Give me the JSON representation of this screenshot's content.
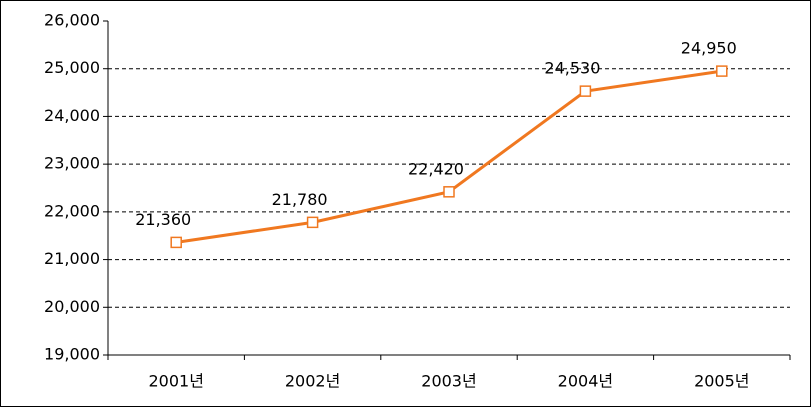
{
  "chart_data": {
    "type": "line",
    "categories": [
      "2001년",
      "2002년",
      "2003년",
      "2004년",
      "2005년"
    ],
    "series": [
      {
        "color": "#f07820",
        "values": [
          21360,
          21780,
          22420,
          24530,
          24950
        ],
        "value_labels": [
          "21,360",
          "21,780",
          "22,420",
          "24,530",
          "24,950"
        ]
      }
    ],
    "ylim": [
      19000,
      26000
    ],
    "yticks": [
      {
        "value": 19000,
        "label": "19,000"
      },
      {
        "value": 20000,
        "label": "20,000"
      },
      {
        "value": 21000,
        "label": "21,000"
      },
      {
        "value": 22000,
        "label": "22,000"
      },
      {
        "value": 23000,
        "label": "23,000"
      },
      {
        "value": 24000,
        "label": "24,000"
      },
      {
        "value": 25000,
        "label": "25,000"
      },
      {
        "value": 26000,
        "label": "26,000"
      }
    ],
    "grid": true
  }
}
